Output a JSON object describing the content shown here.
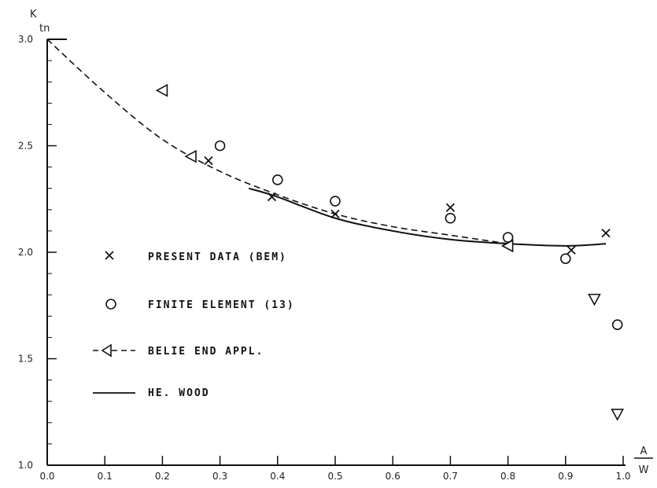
{
  "chart_data": {
    "type": "scatter",
    "ylabel": "K",
    "ylabel_sub": "tn",
    "xlabel_num": "A",
    "xlabel_den": "W",
    "xlim": [
      0.0,
      1.0
    ],
    "ylim": [
      1.0,
      3.0
    ],
    "x_ticks": [
      "0.0",
      "0.1",
      "0.2",
      "0.3",
      "0.4",
      "0.5",
      "0.6",
      "0.7",
      "0.8",
      "0.9",
      "1.0"
    ],
    "y_ticks": [
      "1.0",
      "1.5",
      "2.0",
      "2.5",
      "3.0"
    ],
    "grid": false,
    "legend_position": "middle-left",
    "series": [
      {
        "name": "PRESENT DATA (BEM)",
        "marker": "x",
        "points": [
          [
            0.28,
            2.43
          ],
          [
            0.39,
            2.26
          ],
          [
            0.5,
            2.18
          ],
          [
            0.7,
            2.21
          ],
          [
            0.91,
            2.01
          ],
          [
            0.97,
            2.09
          ]
        ]
      },
      {
        "name": "FINITE ELEMENT (13)",
        "marker": "circle",
        "points": [
          [
            0.3,
            2.5
          ],
          [
            0.4,
            2.34
          ],
          [
            0.5,
            2.24
          ],
          [
            0.7,
            2.16
          ],
          [
            0.8,
            2.07
          ],
          [
            0.9,
            1.97
          ],
          [
            0.99,
            1.66
          ]
        ]
      },
      {
        "name": "BELIE END APPL.",
        "marker": "triangle",
        "line": "dashed",
        "points": [
          [
            0.2,
            2.76
          ],
          [
            0.25,
            2.45
          ],
          [
            0.8,
            2.03
          ]
        ],
        "curve": [
          [
            0.0,
            3.0
          ],
          [
            0.1,
            2.75
          ],
          [
            0.2,
            2.53
          ],
          [
            0.3,
            2.38
          ],
          [
            0.4,
            2.27
          ],
          [
            0.5,
            2.18
          ],
          [
            0.6,
            2.12
          ],
          [
            0.7,
            2.08
          ],
          [
            0.8,
            2.04
          ]
        ]
      },
      {
        "name": "",
        "marker": "triangle-down",
        "points": [
          [
            0.95,
            1.78
          ],
          [
            0.99,
            1.24
          ]
        ]
      },
      {
        "name": "HE. WOOD",
        "marker": "none",
        "line": "solid",
        "curve": [
          [
            0.35,
            2.3
          ],
          [
            0.4,
            2.26
          ],
          [
            0.5,
            2.16
          ],
          [
            0.6,
            2.1
          ],
          [
            0.7,
            2.06
          ],
          [
            0.8,
            2.04
          ],
          [
            0.9,
            2.03
          ],
          [
            0.97,
            2.04
          ]
        ]
      }
    ]
  }
}
